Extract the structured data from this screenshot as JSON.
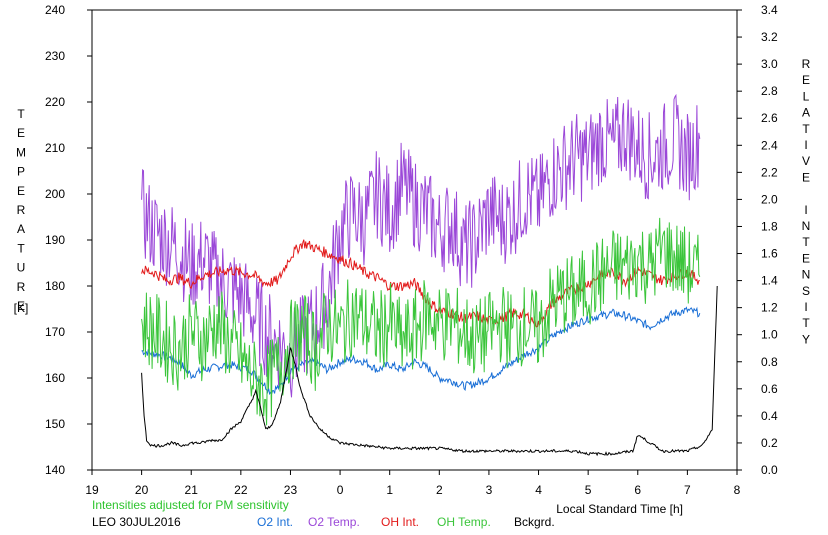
{
  "chart_data": {
    "type": "line",
    "title": "",
    "xlabel": "Local Standard Time [h]",
    "ylabel_left": "TEMPERATURE",
    "ylabel_left_unit": "[K]",
    "ylabel_right": "RELATIVE INTENSITY",
    "ylim_left": [
      140,
      240
    ],
    "ylim_right": [
      0.0,
      3.4
    ],
    "x_range_hours": [
      19,
      32
    ],
    "x_ticks": [
      "19",
      "20",
      "21",
      "22",
      "23",
      "0",
      "1",
      "2",
      "3",
      "4",
      "5",
      "6",
      "7",
      "8"
    ],
    "y_left_ticks": [
      "140",
      "150",
      "160",
      "170",
      "180",
      "190",
      "200",
      "210",
      "220",
      "230",
      "240"
    ],
    "y_right_ticks": [
      "0.0",
      "0.2",
      "0.4",
      "0.6",
      "0.8",
      "1.0",
      "1.2",
      "1.4",
      "1.6",
      "1.8",
      "2.0",
      "2.2",
      "2.4",
      "2.6",
      "2.8",
      "3.0",
      "3.2",
      "3.4"
    ],
    "grid": false,
    "note": "Intensities adjusted for PM sensitivity",
    "station_date": "LEO 30JUL2016",
    "series": [
      {
        "name": "O2 Int.",
        "color": "#1a6fd6",
        "axis": "right",
        "x": [
          20.0,
          20.25,
          20.5,
          20.75,
          21.0,
          21.25,
          21.5,
          21.75,
          22.0,
          22.2,
          22.4,
          22.6,
          22.8,
          23.0,
          23.25,
          23.5,
          23.75,
          24.0,
          24.25,
          24.5,
          24.75,
          25.0,
          25.25,
          25.5,
          25.75,
          26.0,
          26.25,
          26.5,
          26.75,
          27.0,
          27.25,
          27.5,
          27.75,
          28.0,
          28.25,
          28.5,
          28.75,
          29.0,
          29.25,
          29.5,
          29.75,
          30.0,
          30.25,
          30.5,
          30.75,
          31.0,
          31.25
        ],
        "y": [
          0.88,
          0.86,
          0.84,
          0.8,
          0.7,
          0.74,
          0.76,
          0.78,
          0.76,
          0.74,
          0.66,
          0.58,
          0.62,
          0.74,
          0.78,
          0.8,
          0.74,
          0.8,
          0.82,
          0.8,
          0.74,
          0.78,
          0.74,
          0.8,
          0.76,
          0.68,
          0.66,
          0.62,
          0.64,
          0.68,
          0.74,
          0.8,
          0.86,
          0.9,
          0.98,
          1.04,
          1.08,
          1.12,
          1.14,
          1.16,
          1.14,
          1.1,
          1.06,
          1.12,
          1.16,
          1.18,
          1.16
        ]
      },
      {
        "name": "O2 Temp.",
        "color": "#9b48d8",
        "axis": "left",
        "x": [
          20.0,
          20.25,
          20.5,
          20.75,
          21.0,
          21.25,
          21.5,
          21.75,
          22.0,
          22.5,
          23.0,
          23.5,
          23.75,
          24.0,
          24.25,
          24.5,
          24.75,
          25.0,
          25.25,
          25.5,
          25.75,
          26.0,
          26.25,
          26.5,
          26.75,
          27.0,
          27.25,
          27.5,
          27.75,
          28.0,
          28.25,
          28.5,
          28.75,
          29.0,
          29.25,
          29.5,
          29.75,
          30.0,
          30.25,
          30.5,
          30.75,
          31.0,
          31.25
        ],
        "y": [
          196,
          192,
          190,
          188,
          184,
          186,
          182,
          180,
          178,
          170,
          165,
          172,
          178,
          192,
          196,
          194,
          200,
          196,
          202,
          198,
          196,
          192,
          194,
          188,
          190,
          196,
          194,
          196,
          200,
          198,
          204,
          206,
          208,
          208,
          212,
          210,
          214,
          210,
          208,
          210,
          212,
          208,
          212
        ]
      },
      {
        "name": "OH Int.",
        "color": "#e21a1a",
        "axis": "right",
        "x": [
          20.0,
          20.25,
          20.5,
          20.75,
          21.0,
          21.25,
          21.5,
          21.75,
          22.0,
          22.25,
          22.5,
          22.75,
          23.0,
          23.25,
          23.5,
          23.75,
          24.0,
          24.25,
          24.5,
          24.75,
          25.0,
          25.25,
          25.5,
          25.75,
          26.0,
          26.25,
          26.5,
          26.75,
          27.0,
          27.25,
          27.5,
          27.75,
          28.0,
          28.25,
          28.5,
          28.75,
          29.0,
          29.25,
          29.5,
          29.75,
          30.0,
          30.25,
          30.5,
          30.75,
          31.0,
          31.25
        ],
        "y": [
          1.48,
          1.46,
          1.4,
          1.42,
          1.38,
          1.44,
          1.46,
          1.48,
          1.46,
          1.44,
          1.38,
          1.4,
          1.58,
          1.68,
          1.64,
          1.6,
          1.56,
          1.52,
          1.46,
          1.42,
          1.36,
          1.36,
          1.38,
          1.26,
          1.18,
          1.16,
          1.12,
          1.14,
          1.1,
          1.12,
          1.16,
          1.14,
          1.08,
          1.22,
          1.3,
          1.34,
          1.38,
          1.44,
          1.46,
          1.4,
          1.48,
          1.44,
          1.4,
          1.44,
          1.46,
          1.4
        ]
      },
      {
        "name": "OH Temp.",
        "color": "#3bc53b",
        "axis": "left",
        "x": [
          20.0,
          20.25,
          20.5,
          20.75,
          21.0,
          21.25,
          21.5,
          21.75,
          22.0,
          22.25,
          22.5,
          22.75,
          23.0,
          23.25,
          23.5,
          23.75,
          24.0,
          24.25,
          24.5,
          24.75,
          25.0,
          25.25,
          25.5,
          25.75,
          26.0,
          26.25,
          26.5,
          26.75,
          27.0,
          27.25,
          27.5,
          27.75,
          28.0,
          28.25,
          28.5,
          28.75,
          29.0,
          29.25,
          29.5,
          29.75,
          30.0,
          30.25,
          30.5,
          30.75,
          31.0,
          31.25
        ],
        "y": [
          172,
          170,
          168,
          166,
          170,
          168,
          172,
          168,
          164,
          160,
          158,
          162,
          168,
          170,
          166,
          172,
          170,
          174,
          172,
          170,
          172,
          168,
          170,
          174,
          172,
          172,
          170,
          168,
          170,
          172,
          170,
          172,
          170,
          176,
          178,
          178,
          180,
          182,
          184,
          184,
          186,
          184,
          188,
          186,
          184,
          182
        ]
      },
      {
        "name": "Bckgrd.",
        "color": "#000000",
        "axis": "right",
        "x": [
          20.0,
          20.05,
          20.1,
          20.2,
          20.4,
          20.6,
          20.8,
          21.0,
          21.2,
          21.4,
          21.6,
          21.8,
          22.0,
          22.2,
          22.3,
          22.4,
          22.5,
          22.6,
          22.7,
          22.8,
          22.9,
          23.0,
          23.1,
          23.2,
          23.4,
          23.6,
          23.8,
          24.0,
          24.5,
          25.0,
          25.5,
          26.0,
          26.5,
          27.0,
          27.5,
          28.0,
          28.5,
          28.75,
          29.0,
          29.5,
          29.9,
          30.0,
          30.5,
          31.0,
          31.3,
          31.5,
          31.6
        ],
        "y": [
          0.72,
          0.4,
          0.22,
          0.18,
          0.18,
          0.2,
          0.18,
          0.2,
          0.2,
          0.22,
          0.22,
          0.3,
          0.36,
          0.5,
          0.58,
          0.46,
          0.3,
          0.32,
          0.4,
          0.5,
          0.7,
          0.9,
          0.78,
          0.6,
          0.4,
          0.3,
          0.24,
          0.2,
          0.18,
          0.16,
          0.16,
          0.16,
          0.14,
          0.14,
          0.14,
          0.14,
          0.14,
          0.14,
          0.12,
          0.12,
          0.14,
          0.26,
          0.14,
          0.14,
          0.18,
          0.3,
          1.36
        ]
      }
    ]
  }
}
